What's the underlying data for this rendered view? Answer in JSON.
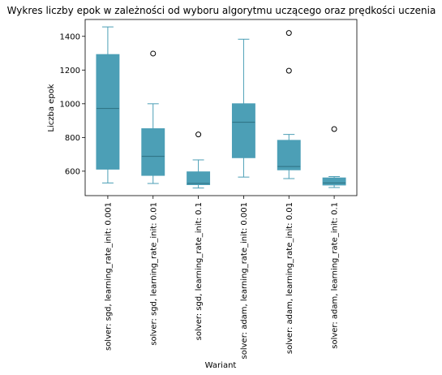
{
  "chart_data": {
    "type": "box",
    "title": "Wykres liczby epok w zależności od wyboru algorytmu uczącego oraz prędkości uczenia",
    "xlabel": "Wariant",
    "ylabel": "Liczba epok",
    "ylim": [
      455,
      1500
    ],
    "yticks": [
      600,
      800,
      1000,
      1200,
      1400
    ],
    "grid": false,
    "color": "#4c9fb6",
    "categories": [
      "solver: sgd, learning_rate_init: 0.001",
      "solver: sgd, learning_rate_init: 0.01",
      "solver: sgd, learning_rate_init: 0.1",
      "solver: adam, learning_rate_init: 0.001",
      "solver: adam, learning_rate_init: 0.01",
      "solver: adam, learning_rate_init: 0.1"
    ],
    "boxes": [
      {
        "whisker_low": 530,
        "q1": 612,
        "median": 972,
        "q3": 1292,
        "whisker_high": 1456,
        "outliers": []
      },
      {
        "whisker_low": 527,
        "q1": 575,
        "median": 688,
        "q3": 852,
        "whisker_high": 1000,
        "outliers": [
          1298
        ]
      },
      {
        "whisker_low": 500,
        "q1": 520,
        "median": 527,
        "q3": 596,
        "whisker_high": 667,
        "outliers": [
          818
        ]
      },
      {
        "whisker_low": 565,
        "q1": 680,
        "median": 890,
        "q3": 1000,
        "whisker_high": 1383,
        "outliers": []
      },
      {
        "whisker_low": 556,
        "q1": 608,
        "median": 628,
        "q3": 783,
        "whisker_high": 818,
        "outliers": [
          1420,
          1196
        ]
      },
      {
        "whisker_low": 503,
        "q1": 518,
        "median": 530,
        "q3": 560,
        "whisker_high": 568,
        "outliers": [
          850
        ]
      }
    ]
  }
}
